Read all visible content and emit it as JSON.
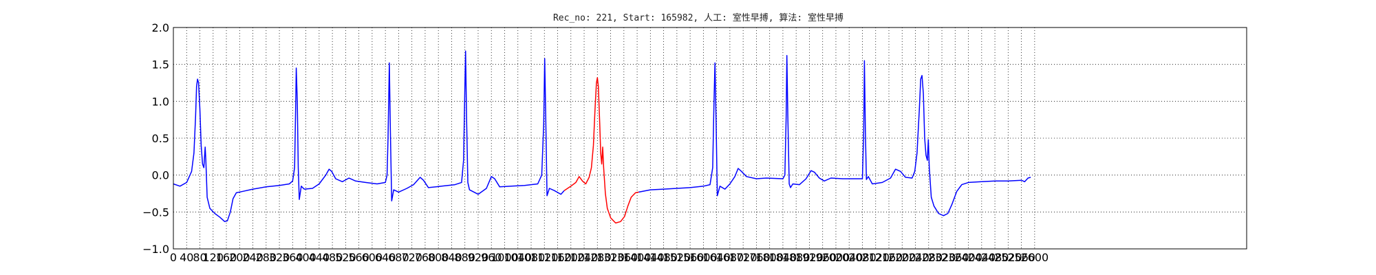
{
  "chart_data": {
    "type": "line",
    "title": "Rec_no: 221, Start: 165982, 人工: 室性早搏, 算法: 室性早搏",
    "xlabel": "",
    "ylabel": "",
    "xlim": [
      0,
      3240
    ],
    "ylim": [
      -1.0,
      2.0
    ],
    "grid": true,
    "x_tick_step": 40,
    "x_tick_max": 2600,
    "x_ticks": [
      0,
      40,
      80,
      120,
      160,
      200,
      240,
      280,
      320,
      360,
      400,
      440,
      480,
      520,
      560,
      600,
      640,
      680,
      720,
      760,
      800,
      840,
      880,
      920,
      960,
      1000,
      1040,
      1080,
      1120,
      1160,
      1200,
      1240,
      1280,
      1320,
      1360,
      1400,
      1440,
      1480,
      1520,
      1560,
      1600,
      1640,
      1680,
      1720,
      1760,
      1800,
      1840,
      1880,
      1920,
      1960,
      2000,
      2040,
      2080,
      2120,
      2160,
      2200,
      2240,
      2280,
      2320,
      2360,
      2400,
      2440,
      2480,
      2520,
      2560,
      2600
    ],
    "y_ticks": [
      -1.0,
      -0.5,
      0.0,
      0.5,
      1.0,
      1.5,
      2.0
    ],
    "y_tick_labels": [
      "−1.0",
      "−0.5",
      "0.0",
      "0.5",
      "1.0",
      "1.5",
      "2.0"
    ],
    "series": [
      {
        "color": "#0000ff",
        "points": [
          [
            0,
            -0.12
          ],
          [
            20,
            -0.15
          ],
          [
            40,
            -0.1
          ],
          [
            55,
            0.05
          ],
          [
            62,
            0.3
          ],
          [
            67,
            0.8
          ],
          [
            70,
            1.2
          ],
          [
            73,
            1.3
          ],
          [
            76,
            1.25
          ],
          [
            80,
            0.9
          ],
          [
            84,
            0.4
          ],
          [
            88,
            0.15
          ],
          [
            92,
            0.1
          ],
          [
            96,
            0.38
          ],
          [
            98,
            0.2
          ],
          [
            102,
            -0.3
          ],
          [
            110,
            -0.45
          ],
          [
            125,
            -0.52
          ],
          [
            140,
            -0.57
          ],
          [
            155,
            -0.63
          ],
          [
            163,
            -0.62
          ],
          [
            172,
            -0.5
          ],
          [
            180,
            -0.32
          ],
          [
            190,
            -0.24
          ],
          [
            210,
            -0.22
          ],
          [
            240,
            -0.19
          ],
          [
            280,
            -0.16
          ],
          [
            320,
            -0.14
          ],
          [
            350,
            -0.12
          ],
          [
            360,
            -0.08
          ],
          [
            366,
            0.1
          ],
          [
            369,
            0.9
          ],
          [
            371,
            1.45
          ],
          [
            374,
            1.0
          ],
          [
            377,
            0.1
          ],
          [
            380,
            -0.33
          ],
          [
            386,
            -0.15
          ],
          [
            395,
            -0.19
          ],
          [
            420,
            -0.18
          ],
          [
            440,
            -0.12
          ],
          [
            460,
            0.0
          ],
          [
            470,
            0.08
          ],
          [
            478,
            0.05
          ],
          [
            490,
            -0.05
          ],
          [
            510,
            -0.09
          ],
          [
            530,
            -0.04
          ],
          [
            550,
            -0.08
          ],
          [
            580,
            -0.1
          ],
          [
            615,
            -0.12
          ],
          [
            640,
            -0.1
          ],
          [
            645,
            0.0
          ],
          [
            648,
            0.5
          ],
          [
            652,
            1.52
          ],
          [
            655,
            0.6
          ],
          [
            659,
            -0.35
          ],
          [
            665,
            -0.2
          ],
          [
            680,
            -0.23
          ],
          [
            705,
            -0.18
          ],
          [
            725,
            -0.13
          ],
          [
            745,
            -0.03
          ],
          [
            755,
            -0.07
          ],
          [
            770,
            -0.17
          ],
          [
            810,
            -0.15
          ],
          [
            850,
            -0.13
          ],
          [
            870,
            -0.1
          ],
          [
            876,
            0.2
          ],
          [
            880,
            1.2
          ],
          [
            882,
            1.68
          ],
          [
            885,
            0.8
          ],
          [
            889,
            -0.1
          ],
          [
            894,
            -0.2
          ],
          [
            920,
            -0.26
          ],
          [
            945,
            -0.18
          ],
          [
            960,
            -0.02
          ],
          [
            970,
            -0.05
          ],
          [
            985,
            -0.16
          ],
          [
            1020,
            -0.15
          ],
          [
            1060,
            -0.14
          ],
          [
            1100,
            -0.12
          ],
          [
            1112,
            0.0
          ],
          [
            1118,
            0.7
          ],
          [
            1121,
            1.58
          ],
          [
            1124,
            0.8
          ],
          [
            1128,
            -0.28
          ],
          [
            1135,
            -0.18
          ],
          [
            1150,
            -0.21
          ],
          [
            1170,
            -0.26
          ],
          [
            1180,
            -0.21
          ]
        ]
      },
      {
        "color": "#ff0000",
        "points": [
          [
            1180,
            -0.21
          ],
          [
            1200,
            -0.15
          ],
          [
            1215,
            -0.1
          ],
          [
            1225,
            -0.02
          ],
          [
            1235,
            -0.08
          ],
          [
            1245,
            -0.12
          ],
          [
            1255,
            -0.03
          ],
          [
            1262,
            0.1
          ],
          [
            1268,
            0.4
          ],
          [
            1273,
            0.9
          ],
          [
            1277,
            1.25
          ],
          [
            1280,
            1.32
          ],
          [
            1283,
            1.2
          ],
          [
            1287,
            0.7
          ],
          [
            1290,
            0.3
          ],
          [
            1293,
            0.15
          ],
          [
            1296,
            0.38
          ],
          [
            1299,
            0.1
          ],
          [
            1304,
            -0.25
          ],
          [
            1310,
            -0.45
          ],
          [
            1320,
            -0.58
          ],
          [
            1335,
            -0.65
          ],
          [
            1350,
            -0.63
          ],
          [
            1362,
            -0.56
          ],
          [
            1372,
            -0.42
          ],
          [
            1382,
            -0.3
          ],
          [
            1395,
            -0.24
          ],
          [
            1405,
            -0.23
          ]
        ]
      },
      {
        "color": "#0000ff",
        "points": [
          [
            1405,
            -0.23
          ],
          [
            1440,
            -0.2
          ],
          [
            1480,
            -0.19
          ],
          [
            1520,
            -0.18
          ],
          [
            1560,
            -0.17
          ],
          [
            1600,
            -0.15
          ],
          [
            1620,
            -0.13
          ],
          [
            1628,
            0.1
          ],
          [
            1632,
            1.0
          ],
          [
            1635,
            1.52
          ],
          [
            1638,
            0.8
          ],
          [
            1642,
            -0.28
          ],
          [
            1650,
            -0.15
          ],
          [
            1665,
            -0.19
          ],
          [
            1680,
            -0.12
          ],
          [
            1695,
            -0.02
          ],
          [
            1705,
            0.09
          ],
          [
            1715,
            0.05
          ],
          [
            1730,
            -0.02
          ],
          [
            1760,
            -0.05
          ],
          [
            1790,
            -0.04
          ],
          [
            1840,
            -0.05
          ],
          [
            1846,
            0.0
          ],
          [
            1850,
            0.8
          ],
          [
            1852,
            1.62
          ],
          [
            1855,
            0.8
          ],
          [
            1859,
            -0.12
          ],
          [
            1863,
            -0.17
          ],
          [
            1870,
            -0.12
          ],
          [
            1890,
            -0.13
          ],
          [
            1910,
            -0.05
          ],
          [
            1925,
            0.06
          ],
          [
            1935,
            0.04
          ],
          [
            1950,
            -0.04
          ],
          [
            1965,
            -0.08
          ],
          [
            1985,
            -0.04
          ],
          [
            2020,
            -0.05
          ],
          [
            2060,
            -0.05
          ],
          [
            2080,
            -0.05
          ],
          [
            2084,
            0.6
          ],
          [
            2086,
            1.55
          ],
          [
            2089,
            0.6
          ],
          [
            2092,
            -0.06
          ],
          [
            2098,
            -0.02
          ],
          [
            2110,
            -0.12
          ],
          [
            2140,
            -0.1
          ],
          [
            2165,
            -0.04
          ],
          [
            2180,
            0.08
          ],
          [
            2195,
            0.05
          ],
          [
            2210,
            -0.03
          ],
          [
            2230,
            -0.04
          ],
          [
            2238,
            0.05
          ],
          [
            2245,
            0.3
          ],
          [
            2252,
            0.9
          ],
          [
            2256,
            1.3
          ],
          [
            2260,
            1.35
          ],
          [
            2264,
            1.1
          ],
          [
            2268,
            0.5
          ],
          [
            2272,
            0.27
          ],
          [
            2276,
            0.2
          ],
          [
            2279,
            0.48
          ],
          [
            2282,
            0.1
          ],
          [
            2288,
            -0.3
          ],
          [
            2296,
            -0.42
          ],
          [
            2310,
            -0.52
          ],
          [
            2325,
            -0.55
          ],
          [
            2338,
            -0.52
          ],
          [
            2350,
            -0.4
          ],
          [
            2365,
            -0.22
          ],
          [
            2380,
            -0.13
          ],
          [
            2400,
            -0.1
          ],
          [
            2440,
            -0.09
          ],
          [
            2480,
            -0.08
          ],
          [
            2520,
            -0.08
          ],
          [
            2560,
            -0.07
          ],
          [
            2570,
            -0.09
          ],
          [
            2580,
            -0.04
          ],
          [
            2588,
            -0.03
          ]
        ]
      }
    ]
  }
}
